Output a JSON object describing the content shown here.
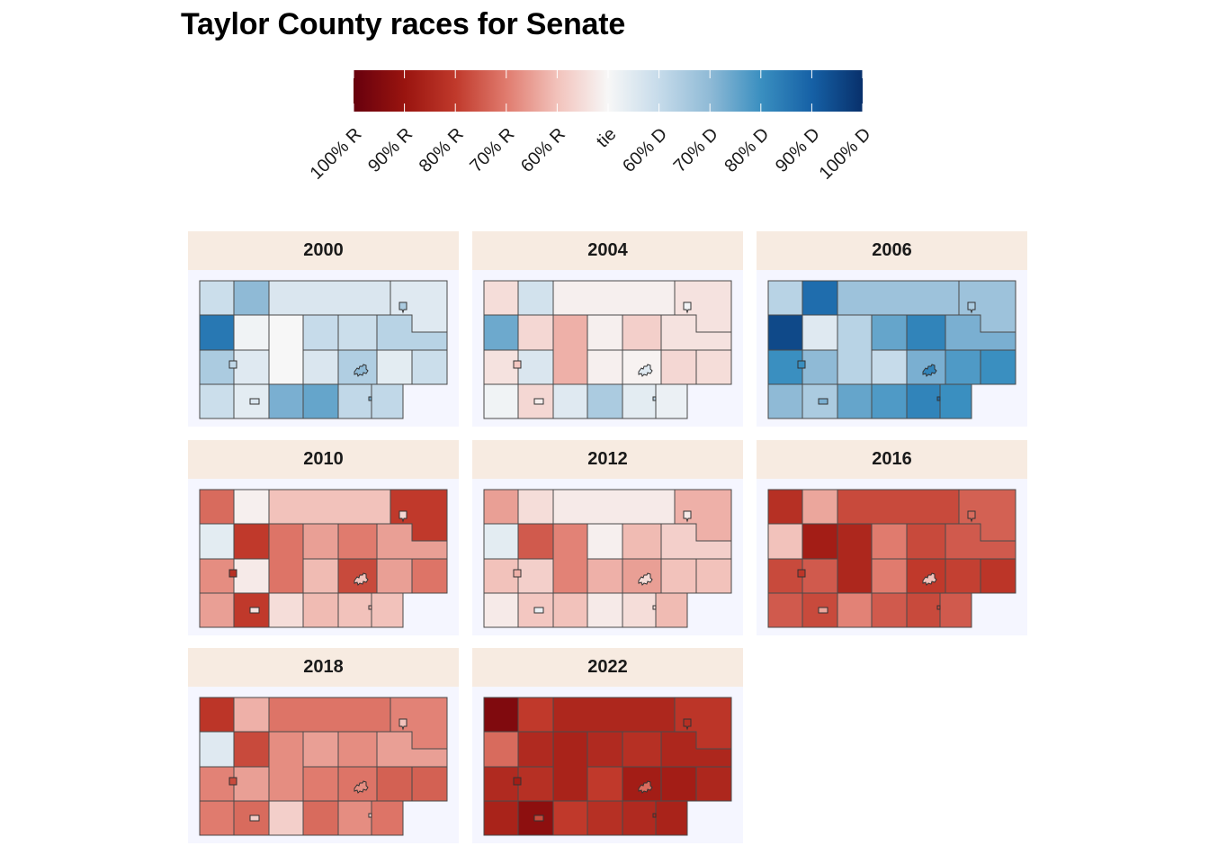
{
  "title": "Taylor County races for Senate",
  "legend": {
    "labels": [
      "100% R",
      "90% R",
      "80% R",
      "70% R",
      "60% R",
      "tie",
      "60% D",
      "70% D",
      "80% D",
      "90% D",
      "100% D"
    ],
    "values": [
      -100,
      -80,
      -60,
      -40,
      -20,
      0,
      20,
      40,
      60,
      80,
      100
    ],
    "colors": {
      "r_max": "#67000d",
      "r_90": "#99140f",
      "r_80": "#c0392b",
      "r_70": "#e07b6e",
      "r_60": "#f2c2bb",
      "tie": "#f7f7f7",
      "d_60": "#c6dbea",
      "d_70": "#8fbad6",
      "d_80": "#3a8fc0",
      "d_90": "#1661a6",
      "d_max": "#08306b"
    }
  },
  "chart_data": {
    "type": "choropleth",
    "title": "Taylor County races for Senate",
    "value_unit": "margin (negative = R, positive = D)",
    "regions": [
      "r1",
      "r2",
      "r3",
      "r4",
      "r5",
      "r6",
      "r7",
      "r8",
      "r9",
      "r10",
      "r11",
      "r12",
      "r13",
      "r14",
      "r15",
      "r16",
      "r17",
      "r18",
      "r19",
      "r20",
      "r21",
      "r22",
      "r23",
      "r24",
      "r25",
      "r26",
      "r27"
    ],
    "panels": [
      {
        "year": "2000",
        "margins": [
          18,
          40,
          12,
          10,
          70,
          3,
          0,
          20,
          18,
          25,
          30,
          10,
          12,
          28,
          8,
          18,
          18,
          8,
          45,
          50,
          22,
          22,
          30,
          22,
          12,
          40,
          45
        ]
      },
      {
        "year": "2004",
        "margins": [
          -10,
          15,
          -3,
          -8,
          48,
          -12,
          -25,
          -3,
          -15,
          -8,
          -8,
          12,
          -3,
          -2,
          -12,
          -10,
          3,
          -12,
          10,
          30,
          8,
          5,
          2,
          -18,
          -3,
          10,
          25
        ]
      },
      {
        "year": "2006",
        "margins": [
          25,
          75,
          35,
          35,
          90,
          10,
          25,
          50,
          65,
          45,
          60,
          40,
          20,
          45,
          55,
          60,
          40,
          30,
          50,
          55,
          65,
          60,
          30,
          60,
          45,
          65,
          75
        ]
      },
      {
        "year": "2010",
        "margins": [
          -45,
          -3,
          -20,
          -60,
          8,
          -60,
          -42,
          -30,
          -40,
          -30,
          -35,
          -5,
          -22,
          -55,
          -30,
          -42,
          -30,
          -60,
          -10,
          -22,
          -20,
          -20,
          -12,
          -65,
          -8,
          -20,
          -22
        ]
      },
      {
        "year": "2012",
        "margins": [
          -30,
          -10,
          -5,
          -25,
          8,
          -50,
          -38,
          -3,
          -22,
          -15,
          -20,
          -15,
          -25,
          -30,
          -20,
          -20,
          -5,
          -18,
          -20,
          -5,
          -10,
          -22,
          -5,
          -25,
          5,
          -10,
          -8
        ]
      },
      {
        "year": "2016",
        "margins": [
          -65,
          -28,
          -55,
          -48,
          -20,
          -75,
          -70,
          -40,
          -55,
          -50,
          -55,
          -50,
          -40,
          -60,
          -58,
          -62,
          -50,
          -55,
          -38,
          -50,
          -55,
          -50,
          -45,
          -62,
          -28,
          -20,
          -55
        ]
      },
      {
        "year": "2018",
        "margins": [
          -62,
          -25,
          -42,
          -38,
          10,
          -55,
          -35,
          -30,
          -35,
          -30,
          -38,
          -30,
          -40,
          -42,
          -48,
          -48,
          -40,
          -45,
          -15,
          -45,
          -35,
          -42,
          -20,
          -55,
          -15,
          -35,
          -12
        ]
      },
      {
        "year": "2022",
        "margins": [
          -90,
          -60,
          -70,
          -62,
          -45,
          -68,
          -72,
          -68,
          -65,
          -70,
          -68,
          -65,
          -60,
          -75,
          -75,
          -70,
          -72,
          -85,
          -60,
          -65,
          -68,
          -72,
          -65,
          -75,
          -55,
          -45,
          -70
        ]
      }
    ]
  }
}
